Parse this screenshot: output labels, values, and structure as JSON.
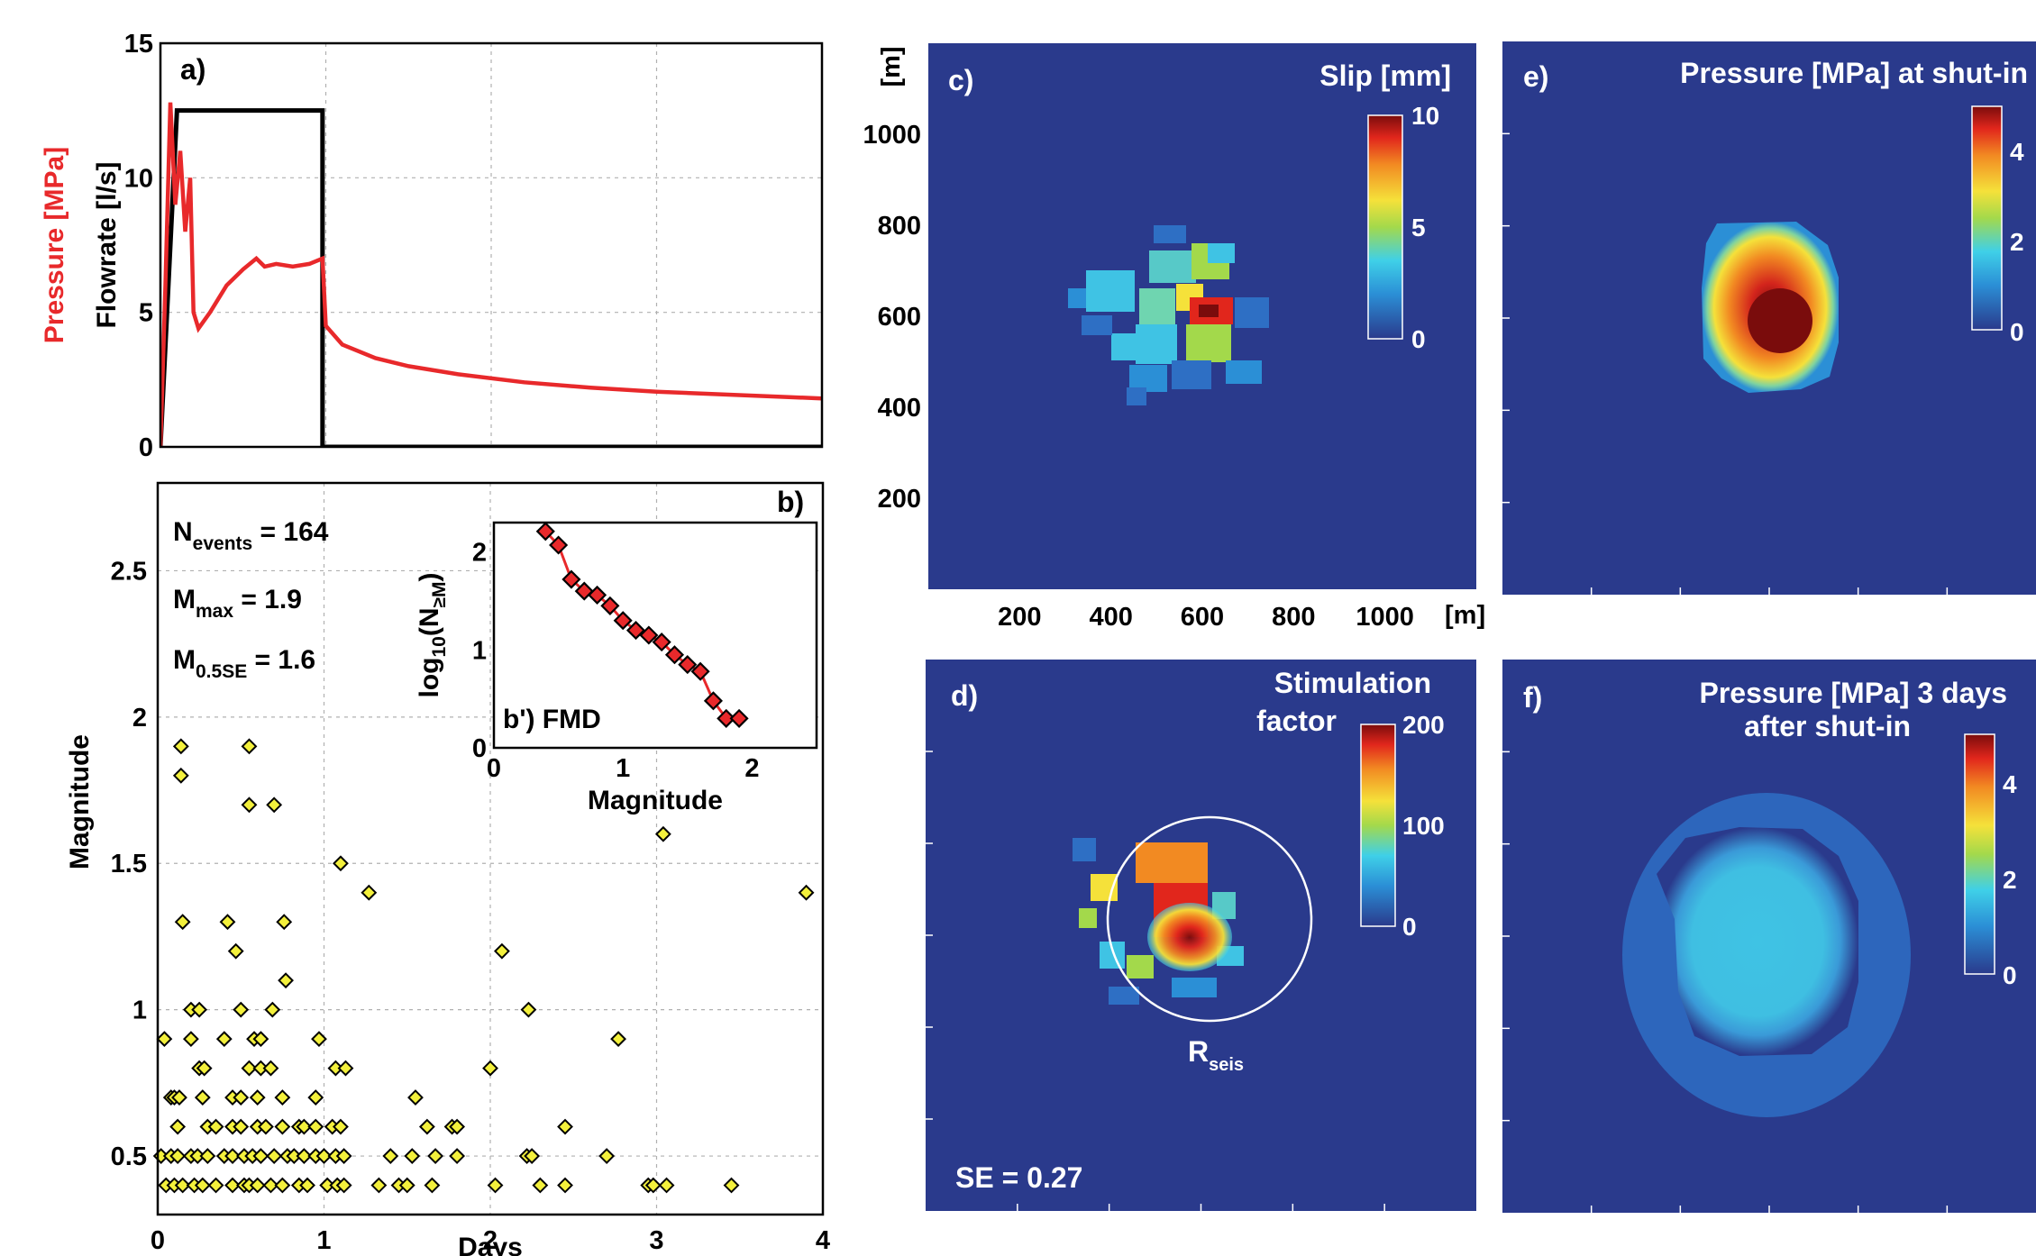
{
  "panels": {
    "a": {
      "title": "a)"
    },
    "b": {
      "title": "b)"
    },
    "b_inset": {
      "title": "b') FMD"
    },
    "c": {
      "title": "c)",
      "colorbar_title": "Slip [mm]"
    },
    "d": {
      "title": "d)",
      "colorbar_title_line1": "Stimulation",
      "colorbar_title_line2": "factor",
      "circle_label_main": "R",
      "circle_label_sub": "seis",
      "annotation": "SE = 0.27"
    },
    "e": {
      "title": "e)",
      "colorbar_title": "Pressure [MPa] at shut-in"
    },
    "f": {
      "title": "f)",
      "colorbar_title_line1": "Pressure [MPa] 3 days",
      "colorbar_title_line2": "after shut-in"
    }
  },
  "stats": {
    "n_events": {
      "main": "N",
      "sub": "events",
      "value": " = 164"
    },
    "m_max": {
      "main": "M",
      "sub": "max",
      "value": " = 1.9"
    },
    "m_05se": {
      "main": "M",
      "sub": "0.5SE",
      "value": " = 1.6"
    }
  },
  "map_axes": {
    "unit_x": "[m]",
    "unit_y": "[m]"
  },
  "colors": {
    "pressure": "#e8292b",
    "flowrate": "#000000",
    "map_bg": "#2a3a8c",
    "marker_fill": "#f3f03c",
    "fmd_fill": "#e8292b"
  },
  "chart_data": [
    {
      "id": "a",
      "type": "line",
      "ylabel": "Flowrate [l/s]",
      "ylabel2": "Pressure [MPa]",
      "xlim": [
        0,
        4
      ],
      "ylim": [
        0,
        15
      ],
      "xticks": [
        0,
        1,
        2,
        3,
        4
      ],
      "yticks": [
        0,
        5,
        10,
        15
      ],
      "grid": true,
      "series": [
        {
          "name": "Flowrate",
          "color": "#000000",
          "points": [
            [
              0,
              0
            ],
            [
              0.1,
              12.5
            ],
            [
              0.98,
              12.5
            ],
            [
              0.98,
              0
            ],
            [
              4,
              0
            ]
          ]
        },
        {
          "name": "Pressure",
          "color": "#e8292b",
          "points": [
            [
              0,
              0
            ],
            [
              0.03,
              6
            ],
            [
              0.06,
              12.8
            ],
            [
              0.09,
              9
            ],
            [
              0.12,
              11
            ],
            [
              0.15,
              8
            ],
            [
              0.18,
              10
            ],
            [
              0.2,
              5
            ],
            [
              0.23,
              4.4
            ],
            [
              0.3,
              5
            ],
            [
              0.4,
              6
            ],
            [
              0.5,
              6.6
            ],
            [
              0.58,
              7.0
            ],
            [
              0.63,
              6.7
            ],
            [
              0.7,
              6.8
            ],
            [
              0.8,
              6.7
            ],
            [
              0.9,
              6.8
            ],
            [
              0.98,
              7.0
            ],
            [
              1.0,
              4.5
            ],
            [
              1.1,
              3.8
            ],
            [
              1.3,
              3.3
            ],
            [
              1.5,
              3.0
            ],
            [
              1.8,
              2.7
            ],
            [
              2.2,
              2.4
            ],
            [
              2.6,
              2.2
            ],
            [
              3.0,
              2.05
            ],
            [
              3.4,
              1.95
            ],
            [
              3.8,
              1.85
            ],
            [
              4,
              1.8
            ]
          ]
        }
      ]
    },
    {
      "id": "b",
      "type": "scatter",
      "xlabel": "Days",
      "ylabel": "Magnitude",
      "xlim": [
        0,
        4
      ],
      "ylim": [
        0.3,
        2.8
      ],
      "xticks": [
        0,
        1,
        2,
        3,
        4
      ],
      "yticks": [
        0.5,
        1,
        1.5,
        2,
        2.5
      ],
      "grid": true,
      "points": [
        [
          0.14,
          1.9
        ],
        [
          0.55,
          1.9
        ],
        [
          0.14,
          1.8
        ],
        [
          0.55,
          1.7
        ],
        [
          0.7,
          1.7
        ],
        [
          1.1,
          1.5
        ],
        [
          1.27,
          1.4
        ],
        [
          3.04,
          1.6
        ],
        [
          3.9,
          1.4
        ],
        [
          0.15,
          1.3
        ],
        [
          0.42,
          1.3
        ],
        [
          0.76,
          1.3
        ],
        [
          0.47,
          1.2
        ],
        [
          2.07,
          1.2
        ],
        [
          0.77,
          1.1
        ],
        [
          0.2,
          1.0
        ],
        [
          0.25,
          1.0
        ],
        [
          0.5,
          1.0
        ],
        [
          0.69,
          1.0
        ],
        [
          2.23,
          1.0
        ],
        [
          0.04,
          0.9
        ],
        [
          0.2,
          0.9
        ],
        [
          0.4,
          0.9
        ],
        [
          0.58,
          0.9
        ],
        [
          0.62,
          0.9
        ],
        [
          0.97,
          0.9
        ],
        [
          2.77,
          0.9
        ],
        [
          0.25,
          0.8
        ],
        [
          0.28,
          0.8
        ],
        [
          0.55,
          0.8
        ],
        [
          0.62,
          0.8
        ],
        [
          0.68,
          0.8
        ],
        [
          1.07,
          0.8
        ],
        [
          1.13,
          0.8
        ],
        [
          2.0,
          0.8
        ],
        [
          0.08,
          0.7
        ],
        [
          0.1,
          0.7
        ],
        [
          0.13,
          0.7
        ],
        [
          0.27,
          0.7
        ],
        [
          0.45,
          0.7
        ],
        [
          0.5,
          0.7
        ],
        [
          0.6,
          0.7
        ],
        [
          0.75,
          0.7
        ],
        [
          0.95,
          0.7
        ],
        [
          1.55,
          0.7
        ],
        [
          0.12,
          0.6
        ],
        [
          0.3,
          0.6
        ],
        [
          0.35,
          0.6
        ],
        [
          0.45,
          0.6
        ],
        [
          0.5,
          0.6
        ],
        [
          0.6,
          0.6
        ],
        [
          0.65,
          0.6
        ],
        [
          0.75,
          0.6
        ],
        [
          0.85,
          0.6
        ],
        [
          0.88,
          0.6
        ],
        [
          0.95,
          0.6
        ],
        [
          1.05,
          0.6
        ],
        [
          1.1,
          0.6
        ],
        [
          1.62,
          0.6
        ],
        [
          1.77,
          0.6
        ],
        [
          1.8,
          0.6
        ],
        [
          2.45,
          0.6
        ],
        [
          0.02,
          0.5
        ],
        [
          0.08,
          0.5
        ],
        [
          0.12,
          0.5
        ],
        [
          0.2,
          0.5
        ],
        [
          0.24,
          0.5
        ],
        [
          0.3,
          0.5
        ],
        [
          0.4,
          0.5
        ],
        [
          0.45,
          0.5
        ],
        [
          0.52,
          0.5
        ],
        [
          0.57,
          0.5
        ],
        [
          0.62,
          0.5
        ],
        [
          0.7,
          0.5
        ],
        [
          0.78,
          0.5
        ],
        [
          0.82,
          0.5
        ],
        [
          0.88,
          0.5
        ],
        [
          0.95,
          0.5
        ],
        [
          1.0,
          0.5
        ],
        [
          1.07,
          0.5
        ],
        [
          1.12,
          0.5
        ],
        [
          1.4,
          0.5
        ],
        [
          1.53,
          0.5
        ],
        [
          1.67,
          0.5
        ],
        [
          1.8,
          0.5
        ],
        [
          2.22,
          0.5
        ],
        [
          2.25,
          0.5
        ],
        [
          2.7,
          0.5
        ],
        [
          0.05,
          0.4
        ],
        [
          0.1,
          0.4
        ],
        [
          0.15,
          0.4
        ],
        [
          0.22,
          0.4
        ],
        [
          0.27,
          0.4
        ],
        [
          0.35,
          0.4
        ],
        [
          0.45,
          0.4
        ],
        [
          0.52,
          0.4
        ],
        [
          0.55,
          0.4
        ],
        [
          0.6,
          0.4
        ],
        [
          0.68,
          0.4
        ],
        [
          0.75,
          0.4
        ],
        [
          0.85,
          0.4
        ],
        [
          0.9,
          0.4
        ],
        [
          1.02,
          0.4
        ],
        [
          1.08,
          0.4
        ],
        [
          1.12,
          0.4
        ],
        [
          1.33,
          0.4
        ],
        [
          1.45,
          0.4
        ],
        [
          1.5,
          0.4
        ],
        [
          1.65,
          0.4
        ],
        [
          2.03,
          0.4
        ],
        [
          2.3,
          0.4
        ],
        [
          2.45,
          0.4
        ],
        [
          2.95,
          0.4
        ],
        [
          2.98,
          0.4
        ],
        [
          3.06,
          0.4
        ],
        [
          3.45,
          0.4
        ]
      ]
    },
    {
      "id": "b_inset",
      "type": "line",
      "xlabel": "Magnitude",
      "ylabel": "log10(N≥M)",
      "ylabel_main": "log",
      "ylabel_sub": "10",
      "ylabel_mid": "(N",
      "ylabel_sub2": "≥M",
      "ylabel_end": ")",
      "xlim": [
        0,
        2.5
      ],
      "ylim": [
        0,
        2.3
      ],
      "xticks": [
        0,
        1,
        2
      ],
      "yticks": [
        0,
        1,
        2
      ],
      "points": [
        [
          0.4,
          2.21
        ],
        [
          0.5,
          2.07
        ],
        [
          0.6,
          1.72
        ],
        [
          0.7,
          1.6
        ],
        [
          0.8,
          1.56
        ],
        [
          0.9,
          1.45
        ],
        [
          1.0,
          1.3
        ],
        [
          1.1,
          1.2
        ],
        [
          1.2,
          1.15
        ],
        [
          1.3,
          1.08
        ],
        [
          1.4,
          0.95
        ],
        [
          1.5,
          0.85
        ],
        [
          1.6,
          0.78
        ],
        [
          1.7,
          0.48
        ],
        [
          1.8,
          0.3
        ],
        [
          1.9,
          0.3
        ]
      ]
    },
    {
      "id": "c",
      "type": "heatmap",
      "xticks": [
        200,
        400,
        600,
        800,
        1000
      ],
      "yticks": [
        200,
        400,
        600,
        800,
        1000
      ],
      "colorbar_ticks": [
        0,
        5,
        10
      ]
    },
    {
      "id": "d",
      "type": "heatmap",
      "colorbar_ticks": [
        0,
        100,
        200
      ]
    },
    {
      "id": "e",
      "type": "heatmap",
      "colorbar_ticks": [
        0,
        2,
        4
      ]
    },
    {
      "id": "f",
      "type": "heatmap",
      "colorbar_ticks": [
        0,
        2,
        4
      ]
    }
  ]
}
